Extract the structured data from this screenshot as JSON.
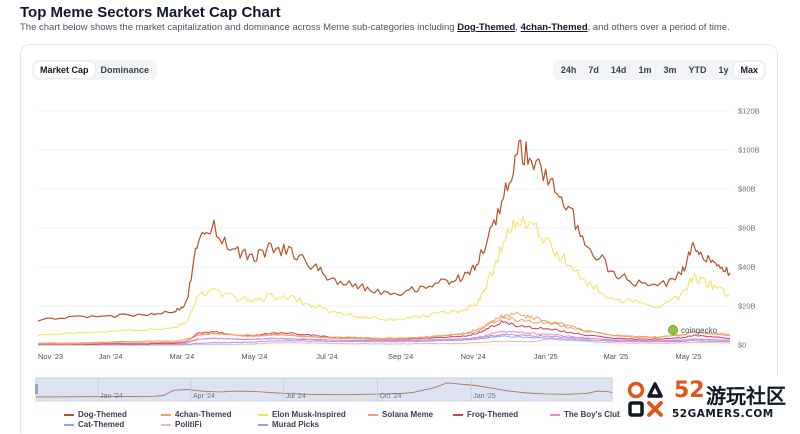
{
  "page": {
    "title": "Top Meme Sectors Market Cap Chart",
    "subtitle_pre": "The chart below shows the market capitalization and dominance across Meme sub-categories including ",
    "link1": "Dog-Themed",
    "sep": ", ",
    "link2": "4chan-Themed",
    "subtitle_post": ", and others over a period of time."
  },
  "toggle": {
    "market_cap": "Market Cap",
    "dominance": "Dominance"
  },
  "ranges": [
    "24h",
    "7d",
    "14d",
    "1m",
    "3m",
    "YTD",
    "1y",
    "Max"
  ],
  "watermark": {
    "num": "52",
    "cn": "游玩社区",
    "domain": "52GAMERS.COM"
  },
  "coingecko": "coingecko",
  "colors": {
    "dog": "#b4532a",
    "chan": "#f0a35e",
    "elon": "#f5e05c",
    "solana": "#e9a07a",
    "frog": "#d7385e",
    "boys": "#e58ad4",
    "cat": "#8ea5f0",
    "politifi": "#f3b8a8",
    "murad": "#b48ef0",
    "navigator_bg": "#dde3f0"
  },
  "chart_data": {
    "type": "line",
    "y_unit": "USD (billions)",
    "ylim": [
      0,
      120
    ],
    "yticks": [
      "$0",
      "$20B",
      "$40B",
      "$60B",
      "$80B",
      "$100B",
      "$120B"
    ],
    "xticks": [
      "Nov '23",
      "Jan '24",
      "Mar '24",
      "May '24",
      "Jul '24",
      "Sep '24",
      "Nov '24",
      "Jan '25",
      "Mar '25",
      "May '25"
    ],
    "navigator_ticks": [
      "Jan '24",
      "Apr '24",
      "Jul '24",
      "Oct '24",
      "Jan '25"
    ],
    "x": [
      "2023-11-01",
      "2023-12-01",
      "2024-01-01",
      "2024-02-01",
      "2024-02-25",
      "2024-03-05",
      "2024-03-15",
      "2024-03-28",
      "2024-04-15",
      "2024-05-01",
      "2024-05-15",
      "2024-06-01",
      "2024-06-20",
      "2024-07-05",
      "2024-07-25",
      "2024-08-10",
      "2024-09-01",
      "2024-09-20",
      "2024-10-10",
      "2024-10-25",
      "2024-11-05",
      "2024-11-12",
      "2024-11-25",
      "2024-12-08",
      "2024-12-20",
      "2025-01-05",
      "2025-01-20",
      "2025-02-05",
      "2025-02-25",
      "2025-03-15",
      "2025-04-05",
      "2025-04-25",
      "2025-05-05",
      "2025-05-15",
      "2025-05-25",
      "2025-06-05"
    ],
    "series": [
      {
        "name": "Dog-Themed",
        "color_key": "dog",
        "values": [
          13,
          14,
          15,
          16,
          17,
          22,
          55,
          60,
          48,
          45,
          50,
          48,
          40,
          34,
          30,
          28,
          27,
          30,
          33,
          35,
          42,
          52,
          70,
          102,
          95,
          85,
          70,
          52,
          38,
          32,
          30,
          36,
          50,
          46,
          42,
          37
        ]
      },
      {
        "name": "4chan-Themed",
        "color_key": "chan",
        "values": [
          1,
          1,
          1.5,
          2,
          2,
          3,
          5,
          6,
          5,
          5,
          5.5,
          5,
          4.5,
          4,
          4,
          3.5,
          3.5,
          4,
          5,
          5.5,
          7,
          10,
          15,
          16,
          14,
          12,
          10,
          7,
          5,
          4,
          4,
          5,
          7,
          6,
          6,
          5
        ]
      },
      {
        "name": "Elon Musk-Inspired",
        "color_key": "elon",
        "values": [
          5,
          6,
          7,
          8,
          9,
          12,
          26,
          28,
          24,
          23,
          25,
          24,
          20,
          17,
          15,
          14,
          13,
          15,
          17,
          18,
          22,
          30,
          50,
          66,
          62,
          50,
          42,
          32,
          24,
          22,
          20,
          25,
          35,
          32,
          29,
          26
        ]
      },
      {
        "name": "Solana Meme",
        "color_key": "solana",
        "values": [
          0.5,
          0.5,
          1,
          1,
          1.5,
          2,
          5,
          6,
          5,
          4.5,
          5,
          5,
          4,
          3.5,
          3.5,
          3,
          3.2,
          4,
          5,
          6,
          8,
          10,
          14,
          13,
          12,
          11,
          9,
          7,
          5,
          4.5,
          4,
          5,
          7,
          6,
          5.5,
          5
        ]
      },
      {
        "name": "Frog-Themed",
        "color_key": "frog",
        "values": [
          0.3,
          0.3,
          0.5,
          0.6,
          1,
          2,
          6,
          7,
          5,
          5,
          6,
          6,
          5,
          4,
          3.5,
          3,
          3,
          3.5,
          4,
          4.5,
          6,
          8,
          12,
          10,
          9,
          8,
          6.5,
          5,
          3.5,
          3,
          3,
          3.5,
          5,
          4.5,
          4,
          3.5
        ]
      },
      {
        "name": "The Boy's Club",
        "color_key": "boys",
        "values": [
          0.2,
          0.2,
          0.3,
          0.4,
          0.5,
          1,
          3,
          3.5,
          3,
          3,
          3.3,
          3.2,
          2.8,
          2.5,
          2.3,
          2.2,
          2.2,
          2.5,
          2.8,
          3,
          4,
          5,
          7,
          6.5,
          6,
          5.5,
          4.5,
          3.5,
          2.5,
          2.2,
          2,
          2.3,
          3,
          2.8,
          2.6,
          2.4
        ]
      },
      {
        "name": "Cat-Themed",
        "color_key": "cat",
        "values": [
          0.1,
          0.1,
          0.1,
          0.1,
          0.2,
          0.3,
          0.8,
          1.2,
          1.3,
          1.5,
          2,
          2.2,
          2,
          1.8,
          1.8,
          1.7,
          1.8,
          2,
          2.3,
          2.5,
          3,
          3.5,
          4.5,
          4.2,
          3.8,
          3.5,
          3,
          2.5,
          2,
          1.8,
          1.7,
          1.8,
          2.2,
          2,
          1.9,
          1.8
        ]
      },
      {
        "name": "PolitiFi",
        "color_key": "politifi",
        "values": [
          0,
          0,
          0,
          0,
          0,
          0.1,
          0.2,
          0.3,
          0.4,
          0.6,
          1,
          1.2,
          1,
          0.8,
          0.7,
          0.6,
          0.6,
          0.7,
          0.8,
          0.9,
          1.2,
          1.5,
          2,
          1.8,
          1.6,
          3,
          2.5,
          1.8,
          1.2,
          1,
          0.9,
          1,
          1.3,
          1.2,
          1.1,
          1
        ]
      },
      {
        "name": "Murad Picks",
        "color_key": "murad",
        "values": [
          0.8,
          0.9,
          1,
          1.1,
          1.2,
          1.5,
          3,
          3.5,
          3,
          3,
          3.2,
          3,
          2.8,
          2.6,
          2.5,
          2.4,
          2.4,
          2.6,
          2.9,
          3.1,
          3.6,
          4.2,
          5.5,
          5.2,
          4.8,
          4.4,
          3.8,
          3.2,
          2.6,
          2.3,
          2.2,
          2.4,
          3,
          2.8,
          2.6,
          2.5
        ]
      }
    ],
    "legend_position": "bottom",
    "grid": true
  }
}
